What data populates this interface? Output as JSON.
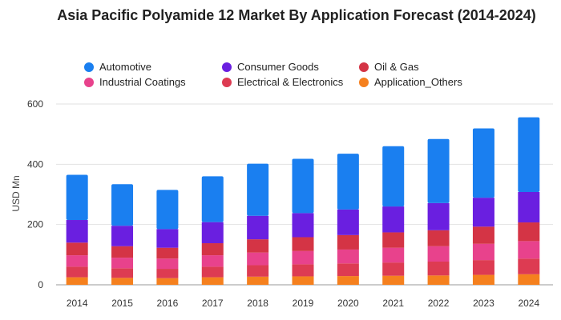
{
  "chart_data": {
    "type": "bar",
    "stacked": true,
    "title": "Asia Pacific Polyamide 12 Market By Application Forecast (2014-2024)",
    "ylabel": "USD Mn",
    "xlabel": "",
    "ylim": [
      0,
      600
    ],
    "yticks": [
      0,
      200,
      400,
      600
    ],
    "grid": true,
    "legend_position": "top",
    "categories": [
      "2014",
      "2015",
      "2016",
      "2017",
      "2018",
      "2019",
      "2020",
      "2021",
      "2022",
      "2023",
      "2024"
    ],
    "series": [
      {
        "name": "Application_Others",
        "color": "#f5801e",
        "values": [
          25,
          23,
          22,
          25,
          27,
          28,
          29,
          30,
          31,
          33,
          35
        ]
      },
      {
        "name": "Electrical & Electronics",
        "color": "#dd3b52",
        "values": [
          35,
          32,
          31,
          35,
          38,
          40,
          42,
          44,
          46,
          49,
          52
        ]
      },
      {
        "name": "Industrial Coatings",
        "color": "#e8428c",
        "values": [
          38,
          35,
          34,
          38,
          42,
          44,
          46,
          49,
          51,
          54,
          58
        ]
      },
      {
        "name": "Oil & Gas",
        "color": "#d43445",
        "values": [
          42,
          38,
          36,
          40,
          44,
          46,
          48,
          51,
          53,
          57,
          62
        ]
      },
      {
        "name": "Consumer Goods",
        "color": "#6a1fe0",
        "values": [
          75,
          68,
          62,
          70,
          78,
          80,
          85,
          86,
          90,
          96,
          101
        ]
      },
      {
        "name": "Automotive",
        "color": "#1a7ff0",
        "values": [
          150,
          138,
          130,
          152,
          173,
          180,
          185,
          200,
          213,
          230,
          248
        ]
      }
    ]
  },
  "legend": {
    "items": [
      {
        "name": "Automotive",
        "color": "#1a7ff0"
      },
      {
        "name": "Consumer Goods",
        "color": "#6a1fe0"
      },
      {
        "name": "Oil & Gas",
        "color": "#d43445"
      },
      {
        "name": "Industrial Coatings",
        "color": "#e8428c"
      },
      {
        "name": "Electrical & Electronics",
        "color": "#dd3b52"
      },
      {
        "name": "Application_Others",
        "color": "#f5801e"
      }
    ]
  }
}
